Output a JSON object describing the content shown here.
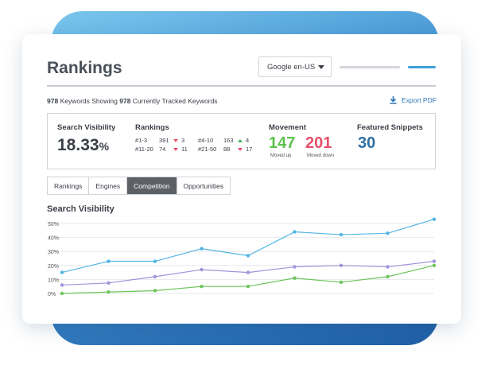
{
  "header": {
    "title": "Rankings",
    "engine_select": "Google en-US"
  },
  "summary": {
    "keywords_count": "978",
    "keywords_text": "Keywords Showing",
    "tracked_count": "978",
    "tracked_text": "Currently Tracked Keywords"
  },
  "export": {
    "label": "Export PDF"
  },
  "search_visibility": {
    "label": "Search Visibility",
    "value": "18.33",
    "unit": "%"
  },
  "rankings": {
    "label": "Rankings",
    "rows": [
      {
        "range": "#1-3",
        "count": "391",
        "change": "3",
        "direction": "down"
      },
      {
        "range": "#4-10",
        "count": "163",
        "change": "4",
        "direction": "up"
      },
      {
        "range": "#11-20",
        "count": "74",
        "change": "11",
        "direction": "down"
      },
      {
        "range": "#21-50",
        "count": "88",
        "change": "17",
        "direction": "down"
      }
    ]
  },
  "movement": {
    "label": "Movement",
    "up_value": "147",
    "up_label": "Moved up",
    "down_value": "201",
    "down_label": "Moved down"
  },
  "featured_snippets": {
    "label": "Featured Snippets",
    "value": "30"
  },
  "tabs": [
    {
      "label": "Rankings",
      "active": false
    },
    {
      "label": "Engines",
      "active": false
    },
    {
      "label": "Competition",
      "active": true
    },
    {
      "label": "Opportunities",
      "active": false
    }
  ],
  "colors": {
    "up_green": "#5cc24c",
    "down_red": "#e5506a",
    "snippets_blue": "#2e6fa3",
    "accent_blue": "#3e9ed8"
  },
  "chart_data": {
    "type": "line",
    "title": "Search Visibility",
    "y_ticks": [
      "0%",
      "10%",
      "20%",
      "30%",
      "40%",
      "50%"
    ],
    "ylim": [
      0,
      50
    ],
    "grid": true,
    "x": [
      1,
      2,
      3,
      4,
      5,
      6,
      7,
      8,
      9
    ],
    "series": [
      {
        "color": "#4fb5e3",
        "values": [
          15,
          23,
          23,
          32,
          27,
          44,
          42,
          43,
          53
        ]
      },
      {
        "color": "#a393dc",
        "values": [
          6,
          7.5,
          12,
          17,
          15,
          19,
          20,
          19,
          23
        ]
      },
      {
        "color": "#6cc45a",
        "values": [
          0,
          1,
          2,
          5,
          5,
          11,
          8,
          12,
          20
        ]
      }
    ]
  }
}
